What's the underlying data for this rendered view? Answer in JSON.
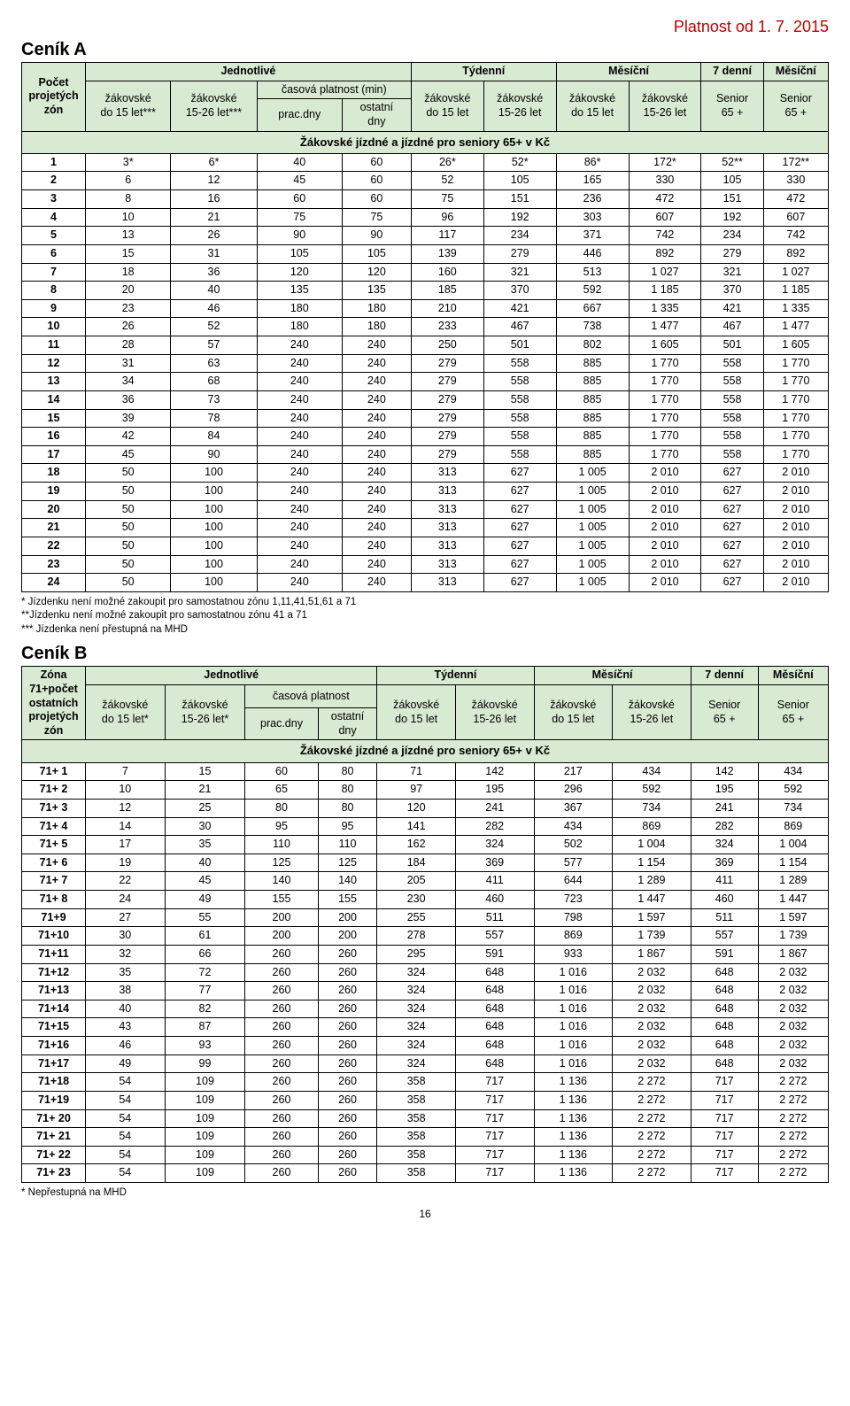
{
  "validity": "Platnost od 1. 7. 2015",
  "page_number": "16",
  "cenikA": {
    "title": "Ceník A",
    "table_title": "Žákovské jízdné a jízdné pro seniory 65+ v Kč",
    "group_headers": [
      "Jednotlivé",
      "Týdenní",
      "Měsíční",
      "7 denní",
      "Měsíční"
    ],
    "sub_group": "časová platnost (min)",
    "col0": [
      "Počet",
      "projetých",
      "zón"
    ],
    "col1": [
      "žákovské",
      "do 15 let***"
    ],
    "col2": [
      "žákovské",
      "15-26 let***"
    ],
    "col3": "prac.dny",
    "col4": [
      "ostatní",
      "dny"
    ],
    "col5": [
      "žákovské",
      "do 15 let"
    ],
    "col6": [
      "žákovské",
      "15-26 let"
    ],
    "col7": [
      "žákovské",
      "do 15 let"
    ],
    "col8": [
      "žákovské",
      "15-26 let"
    ],
    "col9": [
      "Senior",
      "65 +"
    ],
    "col10": [
      "Senior",
      "65 +"
    ],
    "rows": [
      [
        "1",
        "3*",
        "6*",
        "40",
        "60",
        "26*",
        "52*",
        "86*",
        "172*",
        "52**",
        "172**"
      ],
      [
        "2",
        "6",
        "12",
        "45",
        "60",
        "52",
        "105",
        "165",
        "330",
        "105",
        "330"
      ],
      [
        "3",
        "8",
        "16",
        "60",
        "60",
        "75",
        "151",
        "236",
        "472",
        "151",
        "472"
      ],
      [
        "4",
        "10",
        "21",
        "75",
        "75",
        "96",
        "192",
        "303",
        "607",
        "192",
        "607"
      ],
      [
        "5",
        "13",
        "26",
        "90",
        "90",
        "117",
        "234",
        "371",
        "742",
        "234",
        "742"
      ],
      [
        "6",
        "15",
        "31",
        "105",
        "105",
        "139",
        "279",
        "446",
        "892",
        "279",
        "892"
      ],
      [
        "7",
        "18",
        "36",
        "120",
        "120",
        "160",
        "321",
        "513",
        "1 027",
        "321",
        "1 027"
      ],
      [
        "8",
        "20",
        "40",
        "135",
        "135",
        "185",
        "370",
        "592",
        "1 185",
        "370",
        "1 185"
      ],
      [
        "9",
        "23",
        "46",
        "180",
        "180",
        "210",
        "421",
        "667",
        "1 335",
        "421",
        "1 335"
      ],
      [
        "10",
        "26",
        "52",
        "180",
        "180",
        "233",
        "467",
        "738",
        "1 477",
        "467",
        "1 477"
      ],
      [
        "11",
        "28",
        "57",
        "240",
        "240",
        "250",
        "501",
        "802",
        "1 605",
        "501",
        "1 605"
      ],
      [
        "12",
        "31",
        "63",
        "240",
        "240",
        "279",
        "558",
        "885",
        "1 770",
        "558",
        "1 770"
      ],
      [
        "13",
        "34",
        "68",
        "240",
        "240",
        "279",
        "558",
        "885",
        "1 770",
        "558",
        "1 770"
      ],
      [
        "14",
        "36",
        "73",
        "240",
        "240",
        "279",
        "558",
        "885",
        "1 770",
        "558",
        "1 770"
      ],
      [
        "15",
        "39",
        "78",
        "240",
        "240",
        "279",
        "558",
        "885",
        "1 770",
        "558",
        "1 770"
      ],
      [
        "16",
        "42",
        "84",
        "240",
        "240",
        "279",
        "558",
        "885",
        "1 770",
        "558",
        "1 770"
      ],
      [
        "17",
        "45",
        "90",
        "240",
        "240",
        "279",
        "558",
        "885",
        "1 770",
        "558",
        "1 770"
      ],
      [
        "18",
        "50",
        "100",
        "240",
        "240",
        "313",
        "627",
        "1 005",
        "2 010",
        "627",
        "2 010"
      ],
      [
        "19",
        "50",
        "100",
        "240",
        "240",
        "313",
        "627",
        "1 005",
        "2 010",
        "627",
        "2 010"
      ],
      [
        "20",
        "50",
        "100",
        "240",
        "240",
        "313",
        "627",
        "1 005",
        "2 010",
        "627",
        "2 010"
      ],
      [
        "21",
        "50",
        "100",
        "240",
        "240",
        "313",
        "627",
        "1 005",
        "2 010",
        "627",
        "2 010"
      ],
      [
        "22",
        "50",
        "100",
        "240",
        "240",
        "313",
        "627",
        "1 005",
        "2 010",
        "627",
        "2 010"
      ],
      [
        "23",
        "50",
        "100",
        "240",
        "240",
        "313",
        "627",
        "1 005",
        "2 010",
        "627",
        "2 010"
      ],
      [
        "24",
        "50",
        "100",
        "240",
        "240",
        "313",
        "627",
        "1 005",
        "2 010",
        "627",
        "2 010"
      ]
    ],
    "footnotes": [
      "* Jízdenku není možné zakoupit pro samostatnou zónu 1,11,41,51,61 a 71",
      "**Jízdenku není možné zakoupit pro samostatnou zónu 41 a 71",
      "*** Jízdenka není přestupná na MHD"
    ]
  },
  "cenikB": {
    "title": "Ceník B",
    "table_title": "Žákovské jízdné a jízdné pro seniory 65+ v Kč",
    "group_headers": [
      "Jednotlivé",
      "Týdenní",
      "Měsíční",
      "7 denní",
      "Měsíční"
    ],
    "sub_group": "časová platnost",
    "col0": [
      "Zóna",
      "71+počet",
      "ostatních",
      "projetých",
      "zón"
    ],
    "col1": [
      "žákovské",
      "do 15 let*"
    ],
    "col2": [
      "žákovské",
      "15-26 let*"
    ],
    "col3": "prac.dny",
    "col4": [
      "ostatní",
      "dny"
    ],
    "col5": [
      "žákovské",
      "do 15 let"
    ],
    "col6": [
      "žákovské",
      "15-26 let"
    ],
    "col7": [
      "žákovské",
      "do 15 let"
    ],
    "col8": [
      "žákovské",
      "15-26 let"
    ],
    "col9": [
      "Senior",
      "65 +"
    ],
    "col10": [
      "Senior",
      "65 +"
    ],
    "rows": [
      [
        "71+ 1",
        "7",
        "15",
        "60",
        "80",
        "71",
        "142",
        "217",
        "434",
        "142",
        "434"
      ],
      [
        "71+ 2",
        "10",
        "21",
        "65",
        "80",
        "97",
        "195",
        "296",
        "592",
        "195",
        "592"
      ],
      [
        "71+ 3",
        "12",
        "25",
        "80",
        "80",
        "120",
        "241",
        "367",
        "734",
        "241",
        "734"
      ],
      [
        "71+ 4",
        "14",
        "30",
        "95",
        "95",
        "141",
        "282",
        "434",
        "869",
        "282",
        "869"
      ],
      [
        "71+ 5",
        "17",
        "35",
        "110",
        "110",
        "162",
        "324",
        "502",
        "1 004",
        "324",
        "1 004"
      ],
      [
        "71+ 6",
        "19",
        "40",
        "125",
        "125",
        "184",
        "369",
        "577",
        "1 154",
        "369",
        "1 154"
      ],
      [
        "71+ 7",
        "22",
        "45",
        "140",
        "140",
        "205",
        "411",
        "644",
        "1 289",
        "411",
        "1 289"
      ],
      [
        "71+ 8",
        "24",
        "49",
        "155",
        "155",
        "230",
        "460",
        "723",
        "1 447",
        "460",
        "1 447"
      ],
      [
        "71+9",
        "27",
        "55",
        "200",
        "200",
        "255",
        "511",
        "798",
        "1 597",
        "511",
        "1 597"
      ],
      [
        "71+10",
        "30",
        "61",
        "200",
        "200",
        "278",
        "557",
        "869",
        "1 739",
        "557",
        "1 739"
      ],
      [
        "71+11",
        "32",
        "66",
        "260",
        "260",
        "295",
        "591",
        "933",
        "1 867",
        "591",
        "1 867"
      ],
      [
        "71+12",
        "35",
        "72",
        "260",
        "260",
        "324",
        "648",
        "1 016",
        "2 032",
        "648",
        "2 032"
      ],
      [
        "71+13",
        "38",
        "77",
        "260",
        "260",
        "324",
        "648",
        "1 016",
        "2 032",
        "648",
        "2 032"
      ],
      [
        "71+14",
        "40",
        "82",
        "260",
        "260",
        "324",
        "648",
        "1 016",
        "2 032",
        "648",
        "2 032"
      ],
      [
        "71+15",
        "43",
        "87",
        "260",
        "260",
        "324",
        "648",
        "1 016",
        "2 032",
        "648",
        "2 032"
      ],
      [
        "71+16",
        "46",
        "93",
        "260",
        "260",
        "324",
        "648",
        "1 016",
        "2 032",
        "648",
        "2 032"
      ],
      [
        "71+17",
        "49",
        "99",
        "260",
        "260",
        "324",
        "648",
        "1 016",
        "2 032",
        "648",
        "2 032"
      ],
      [
        "71+18",
        "54",
        "109",
        "260",
        "260",
        "358",
        "717",
        "1 136",
        "2 272",
        "717",
        "2 272"
      ],
      [
        "71+19",
        "54",
        "109",
        "260",
        "260",
        "358",
        "717",
        "1 136",
        "2 272",
        "717",
        "2 272"
      ],
      [
        "71+ 20",
        "54",
        "109",
        "260",
        "260",
        "358",
        "717",
        "1 136",
        "2 272",
        "717",
        "2 272"
      ],
      [
        "71+ 21",
        "54",
        "109",
        "260",
        "260",
        "358",
        "717",
        "1 136",
        "2 272",
        "717",
        "2 272"
      ],
      [
        "71+ 22",
        "54",
        "109",
        "260",
        "260",
        "358",
        "717",
        "1 136",
        "2 272",
        "717",
        "2 272"
      ],
      [
        "71+ 23",
        "54",
        "109",
        "260",
        "260",
        "358",
        "717",
        "1 136",
        "2 272",
        "717",
        "2 272"
      ]
    ],
    "footnotes": [
      "* Nepřestupná na MHD"
    ]
  },
  "colors": {
    "header_bg": "#d9ead3",
    "validity_color": "#c00000",
    "border": "#000000",
    "text": "#000000",
    "background": "#ffffff"
  },
  "typography": {
    "body_font": "Arial",
    "table_fontsize_pt": 12.5,
    "title_fontsize_pt": 20,
    "validity_fontsize_pt": 18,
    "footnote_fontsize_pt": 11.5
  }
}
